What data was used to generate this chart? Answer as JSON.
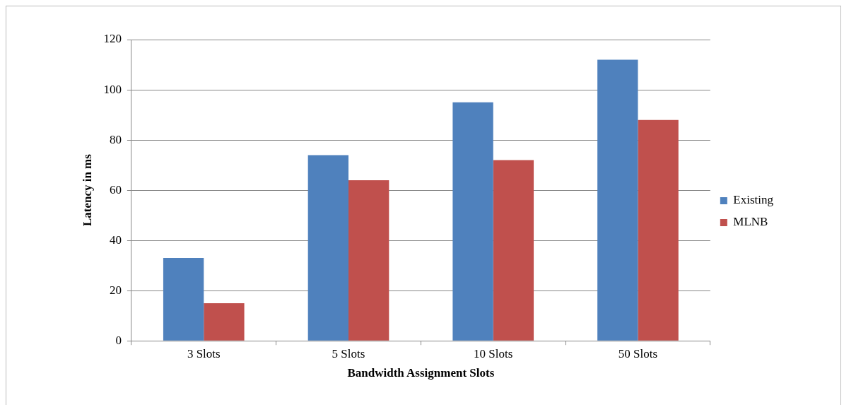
{
  "chart_data": {
    "type": "bar",
    "xlabel": "Bandwidth Assignment Slots",
    "ylabel": "Latency in ms",
    "categories": [
      "3 Slots",
      "5 Slots",
      "10 Slots",
      "50 Slots"
    ],
    "series": [
      {
        "name": "Existing",
        "color": "#4f81bd",
        "values": [
          33,
          74,
          95,
          112
        ]
      },
      {
        "name": "MLNB",
        "color": "#c0504d",
        "values": [
          15,
          64,
          72,
          88
        ]
      }
    ],
    "ylim": [
      0,
      120
    ],
    "yticks": [
      0,
      20,
      40,
      60,
      80,
      100,
      120
    ],
    "grid": "y",
    "legend": "right"
  }
}
